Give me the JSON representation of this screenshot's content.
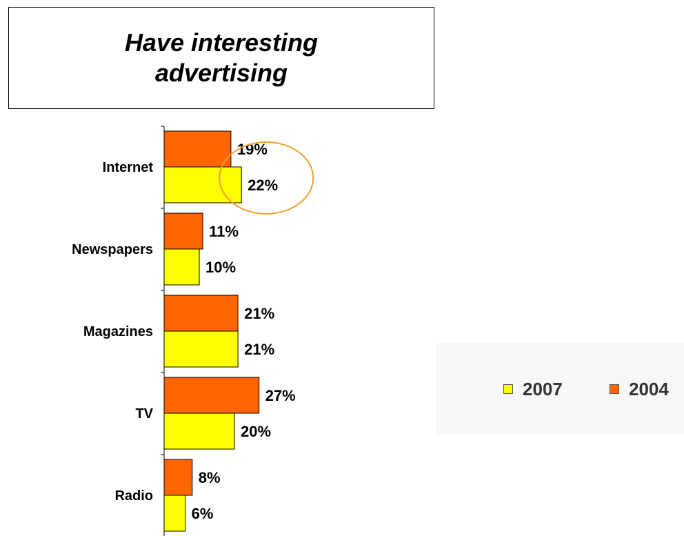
{
  "title": "Have interesting advertising",
  "colors": {
    "2007": "#ffff00",
    "2004": "#ff6600",
    "highlight": "#f0a030"
  },
  "chart_data": {
    "type": "bar",
    "orientation": "horizontal",
    "title": "Have interesting advertising",
    "categories": [
      "Internet",
      "Newspapers",
      "Magazines",
      "TV",
      "Radio"
    ],
    "series": [
      {
        "name": "2004",
        "values": [
          19,
          11,
          21,
          27,
          8
        ],
        "labels": [
          "19%",
          "11%",
          "21%",
          "27%",
          "8%"
        ]
      },
      {
        "name": "2007",
        "values": [
          22,
          10,
          21,
          20,
          6
        ],
        "labels": [
          "22%",
          "10%",
          "21%",
          "20%",
          "6%"
        ]
      }
    ],
    "unit": "%",
    "highlight": "Internet 2007",
    "legend": {
      "position": "bottom-right",
      "items": [
        "2007",
        "2004"
      ]
    },
    "grid": false
  }
}
